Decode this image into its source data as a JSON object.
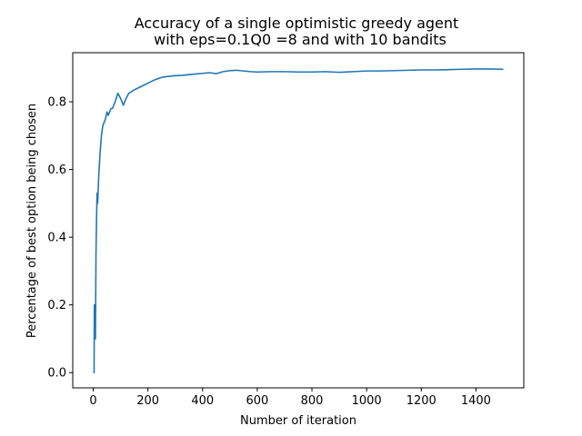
{
  "chart_data": {
    "type": "line",
    "title_line1": "Accuracy of a single optimistic greedy agent",
    "title_line2": "with eps=0.1Q0 =8 and with 10 bandits",
    "xlabel": "Number of iteration",
    "ylabel": "Percentage of best option being chosen",
    "xlim": [
      -75,
      1575
    ],
    "ylim": [
      -0.045,
      0.945
    ],
    "xticks": [
      0,
      200,
      400,
      600,
      800,
      1000,
      1200,
      1400
    ],
    "xtick_labels": [
      "0",
      "200",
      "400",
      "600",
      "800",
      "1000",
      "1200",
      "1400"
    ],
    "yticks": [
      0.0,
      0.2,
      0.4,
      0.6,
      0.8
    ],
    "ytick_labels": [
      "0.0",
      "0.2",
      "0.4",
      "0.6",
      "0.8"
    ],
    "grid": false,
    "series": [
      {
        "color": "#1f77b4",
        "x": [
          0,
          3,
          4,
          5,
          7,
          8,
          10,
          12,
          14,
          16,
          20,
          25,
          30,
          35,
          40,
          45,
          50,
          55,
          60,
          65,
          70,
          80,
          90,
          100,
          110,
          120,
          130,
          150,
          175,
          200,
          225,
          250,
          275,
          300,
          325,
          350,
          375,
          400,
          425,
          450,
          475,
          500,
          525,
          550,
          575,
          600,
          650,
          700,
          750,
          800,
          850,
          900,
          950,
          1000,
          1050,
          1100,
          1150,
          1200,
          1250,
          1300,
          1350,
          1400,
          1450,
          1500
        ],
        "y": [
          0.0,
          0.0,
          0.2,
          0.1,
          0.14,
          0.1,
          0.35,
          0.45,
          0.53,
          0.5,
          0.58,
          0.65,
          0.7,
          0.73,
          0.74,
          0.75,
          0.77,
          0.76,
          0.77,
          0.78,
          0.78,
          0.8,
          0.825,
          0.81,
          0.79,
          0.81,
          0.825,
          0.835,
          0.845,
          0.855,
          0.865,
          0.872,
          0.875,
          0.877,
          0.878,
          0.88,
          0.882,
          0.884,
          0.886,
          0.883,
          0.889,
          0.892,
          0.893,
          0.891,
          0.889,
          0.888,
          0.889,
          0.889,
          0.888,
          0.888,
          0.889,
          0.887,
          0.889,
          0.891,
          0.891,
          0.892,
          0.893,
          0.894,
          0.894,
          0.895,
          0.896,
          0.897,
          0.897,
          0.896
        ]
      }
    ]
  }
}
